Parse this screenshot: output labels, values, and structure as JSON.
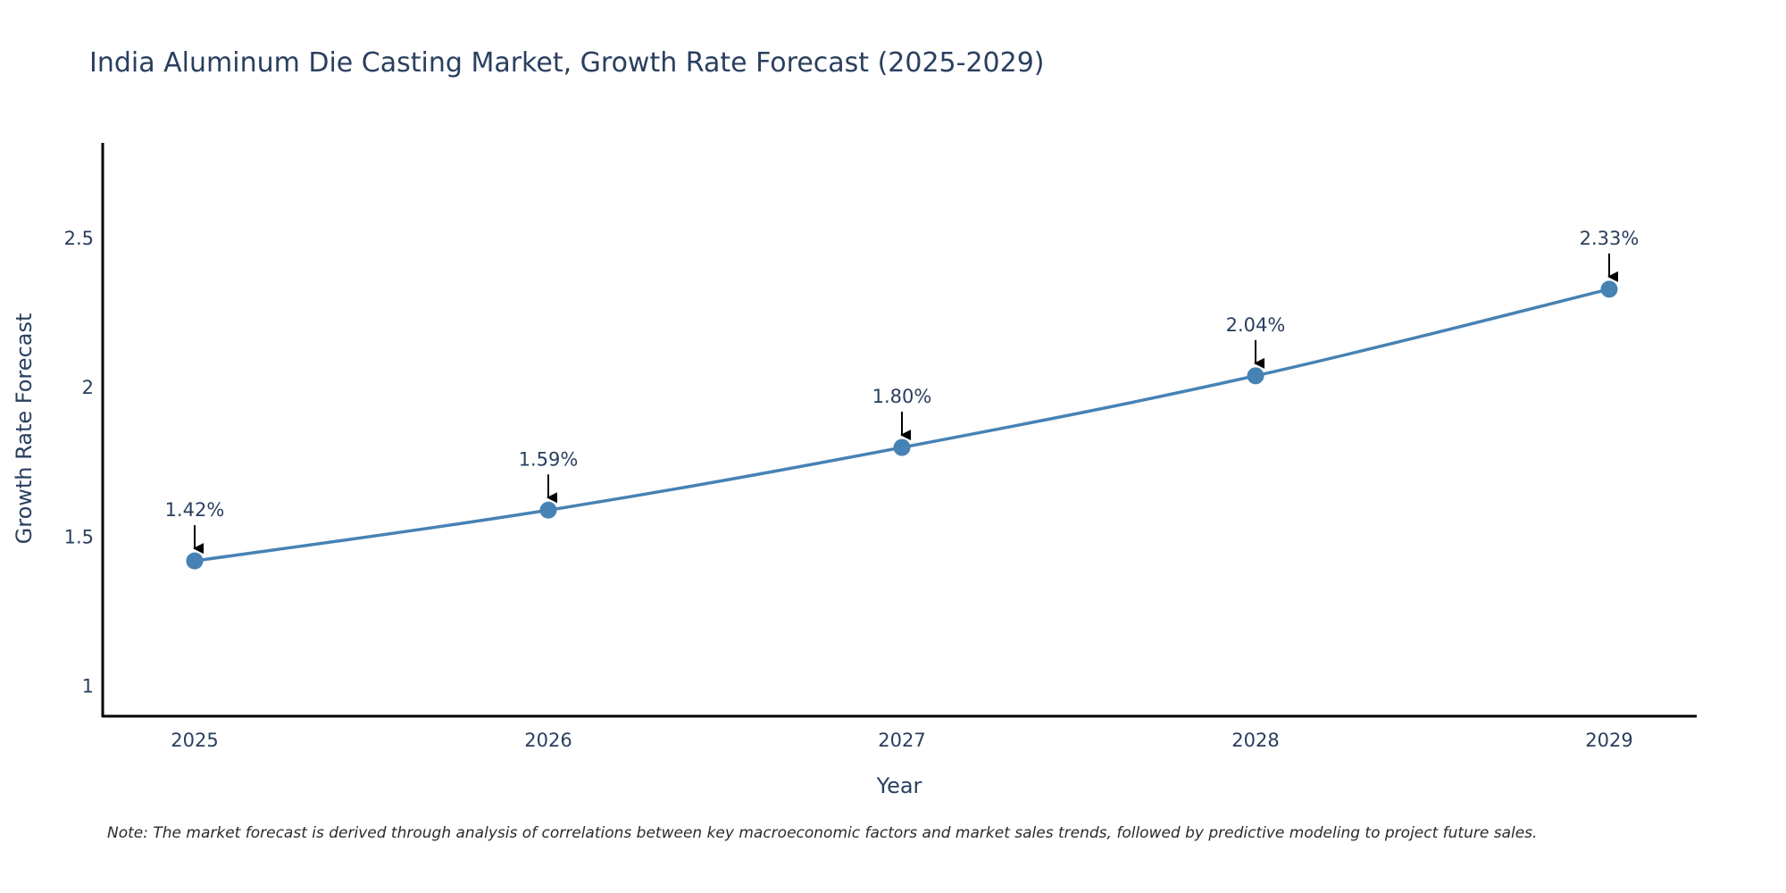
{
  "chart_data": {
    "type": "line",
    "title": "India Aluminum Die Casting Market, Growth Rate Forecast (2025-2029)",
    "xlabel": "Year",
    "ylabel": "Growth Rate Forecast",
    "categories": [
      "2025",
      "2026",
      "2027",
      "2028",
      "2029"
    ],
    "series": [
      {
        "name": "Growth Rate Forecast",
        "values": [
          1.42,
          1.59,
          1.8,
          2.04,
          2.33
        ],
        "labels": [
          "1.42%",
          "1.59%",
          "1.80%",
          "2.04%",
          "2.33%"
        ]
      }
    ],
    "ylim": [
      0.9,
      2.82
    ],
    "yticks": [
      1,
      1.5,
      2,
      2.5
    ],
    "ytick_labels": [
      "1",
      "1.5",
      "2",
      "2.5"
    ],
    "grid": false,
    "legend": "none",
    "annotations": "arrow above each point pointing down with percentage label",
    "line_color": "#4682b4",
    "marker_color": "#4682b4",
    "arrow_color": "#000000",
    "axis_color": "#000000",
    "text_color": "#2a3f5f"
  },
  "note": "Note: The market forecast is derived through analysis of correlations between key macroeconomic factors and market sales trends, followed by predictive modeling to project future sales."
}
